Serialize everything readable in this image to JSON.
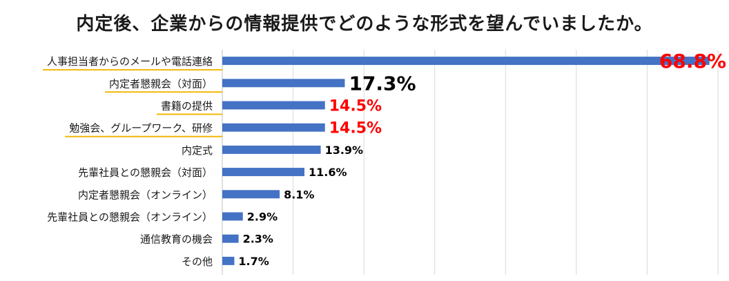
{
  "chart_data": {
    "type": "bar",
    "orientation": "horizontal",
    "title": "内定後、企業からの情報提供でどのような形式を望んでいましたか。",
    "categories": [
      "人事担当者からのメールや電話連絡",
      "内定者懇親会（対面）",
      "書籍の提供",
      "勉強会、グループワーク、研修",
      "内定式",
      "先輩社員との懇親会（対面）",
      "内定者懇親会（オンライン）",
      "先輩社員との懇親会（オンライン）",
      "通信教育の機会",
      "その他"
    ],
    "values": [
      68.8,
      17.3,
      14.5,
      14.5,
      13.9,
      11.6,
      8.1,
      2.9,
      2.3,
      1.7
    ],
    "value_labels": [
      "68.8%",
      "17.3%",
      "14.5%",
      "14.5%",
      "13.9%",
      "11.6%",
      "8.1%",
      "2.9%",
      "2.3%",
      "1.7%"
    ],
    "highlighted_categories": [
      0,
      1,
      2,
      3
    ],
    "xlim": [
      0,
      70
    ],
    "grid": true,
    "legend": "none",
    "colors": {
      "bar": "#4472c4",
      "grid": "#d9d9d9",
      "highlight_underline": "#f2b705",
      "label_red": "#ff0000",
      "label_default": "#000000"
    },
    "label_styles": [
      "large-red",
      "large-black",
      "medium-red",
      "medium-red",
      "normal",
      "normal",
      "normal",
      "normal",
      "normal",
      "normal"
    ]
  }
}
